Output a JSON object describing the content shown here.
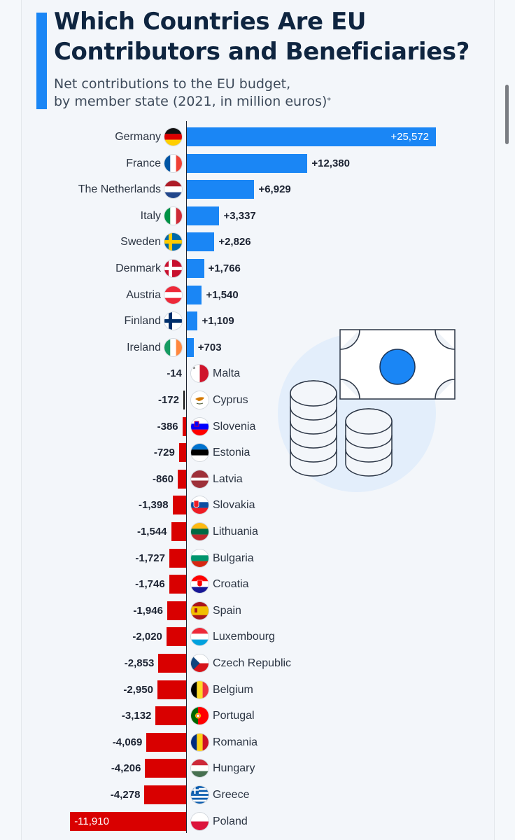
{
  "header": {
    "title_line1": "Which Countries Are EU",
    "title_line2": "Contributors and Beneficiaries?",
    "subtitle_line1": "Net contributions to the EU budget,",
    "subtitle_line2": "by member state (2021, in million euros)",
    "subtitle_footnote_mark": "*"
  },
  "colors": {
    "positive": "#1a86f5",
    "negative": "#d90000",
    "title": "#0f2540",
    "accent": "#1a86f5"
  },
  "chart_data": {
    "type": "bar",
    "orientation": "horizontal",
    "title": "Which Countries Are EU Contributors and Beneficiaries?",
    "subtitle": "Net contributions to the EU budget, by member state (2021, in million euros)*",
    "xlabel": "",
    "ylabel": "",
    "grid": false,
    "legend": null,
    "categories": [
      "Germany",
      "France",
      "The Netherlands",
      "Italy",
      "Sweden",
      "Denmark",
      "Austria",
      "Finland",
      "Ireland",
      "Malta",
      "Cyprus",
      "Slovenia",
      "Estonia",
      "Latvia",
      "Slovakia",
      "Lithuania",
      "Bulgaria",
      "Croatia",
      "Spain",
      "Luxembourg",
      "Czech Republic",
      "Belgium",
      "Portugal",
      "Romania",
      "Hungary",
      "Greece",
      "Poland"
    ],
    "values": [
      25572,
      12380,
      6929,
      3337,
      2826,
      1766,
      1540,
      1109,
      703,
      -14,
      -172,
      -386,
      -729,
      -860,
      -1398,
      -1544,
      -1727,
      -1746,
      -1946,
      -2020,
      -2853,
      -2950,
      -3132,
      -4069,
      -4206,
      -4278,
      -11910
    ],
    "labels": [
      "+25,572",
      "+12,380",
      "+6,929",
      "+3,337",
      "+2,826",
      "+1,766",
      "+1,540",
      "+1,109",
      "+703",
      "-14",
      "-172",
      "-386",
      "-729",
      "-860",
      "-1,398",
      "-1,544",
      "-1,727",
      "-1,746",
      "-1,946",
      "-2,020",
      "-2,853",
      "-2,950",
      "-3,132",
      "-4,069",
      "-4,206",
      "-4,278",
      "-11,910"
    ],
    "xlim": [
      -11910,
      25572
    ]
  },
  "rows": [
    {
      "name": "Germany",
      "value": 25572,
      "label": "+25,572",
      "flag": "de"
    },
    {
      "name": "France",
      "value": 12380,
      "label": "+12,380",
      "flag": "fr"
    },
    {
      "name": "The Netherlands",
      "value": 6929,
      "label": "+6,929",
      "flag": "nl"
    },
    {
      "name": "Italy",
      "value": 3337,
      "label": "+3,337",
      "flag": "it"
    },
    {
      "name": "Sweden",
      "value": 2826,
      "label": "+2,826",
      "flag": "se"
    },
    {
      "name": "Denmark",
      "value": 1766,
      "label": "+1,766",
      "flag": "dk"
    },
    {
      "name": "Austria",
      "value": 1540,
      "label": "+1,540",
      "flag": "at"
    },
    {
      "name": "Finland",
      "value": 1109,
      "label": "+1,109",
      "flag": "fi"
    },
    {
      "name": "Ireland",
      "value": 703,
      "label": "+703",
      "flag": "ie"
    },
    {
      "name": "Malta",
      "value": -14,
      "label": "-14",
      "flag": "mt"
    },
    {
      "name": "Cyprus",
      "value": -172,
      "label": "-172",
      "flag": "cy"
    },
    {
      "name": "Slovenia",
      "value": -386,
      "label": "-386",
      "flag": "si"
    },
    {
      "name": "Estonia",
      "value": -729,
      "label": "-729",
      "flag": "ee"
    },
    {
      "name": "Latvia",
      "value": -860,
      "label": "-860",
      "flag": "lv"
    },
    {
      "name": "Slovakia",
      "value": -1398,
      "label": "-1,398",
      "flag": "sk"
    },
    {
      "name": "Lithuania",
      "value": -1544,
      "label": "-1,544",
      "flag": "lt"
    },
    {
      "name": "Bulgaria",
      "value": -1727,
      "label": "-1,727",
      "flag": "bg"
    },
    {
      "name": "Croatia",
      "value": -1746,
      "label": "-1,746",
      "flag": "hr"
    },
    {
      "name": "Spain",
      "value": -1946,
      "label": "-1,946",
      "flag": "es"
    },
    {
      "name": "Luxembourg",
      "value": -2020,
      "label": "-2,020",
      "flag": "lu"
    },
    {
      "name": "Czech Republic",
      "value": -2853,
      "label": "-2,853",
      "flag": "cz"
    },
    {
      "name": "Belgium",
      "value": -2950,
      "label": "-2,950",
      "flag": "be"
    },
    {
      "name": "Portugal",
      "value": -3132,
      "label": "-3,132",
      "flag": "pt"
    },
    {
      "name": "Romania",
      "value": -4069,
      "label": "-4,069",
      "flag": "ro"
    },
    {
      "name": "Hungary",
      "value": -4206,
      "label": "-4,206",
      "flag": "hu"
    },
    {
      "name": "Greece",
      "value": -4278,
      "label": "-4,278",
      "flag": "gr"
    },
    {
      "name": "Poland",
      "value": -11910,
      "label": "-11,910",
      "flag": "pl"
    }
  ],
  "illustration": {
    "icon": "money-bill-and-coin-stacks-icon"
  }
}
